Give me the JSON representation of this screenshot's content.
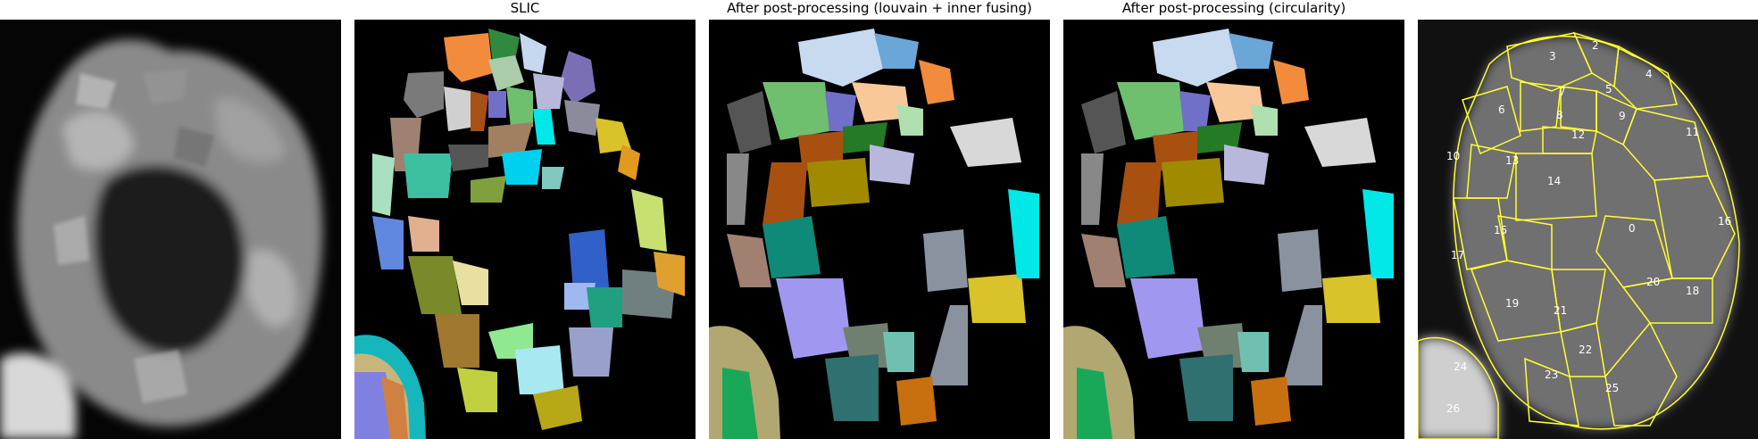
{
  "titles": {
    "panel1": "",
    "panel2": "SLIC",
    "panel3": "After post-processing (louvain + inner fusing)",
    "panel4": "After post-processing (circularity)",
    "panel5": ""
  },
  "region_labels": [
    "2",
    "3",
    "4",
    "5",
    "6",
    "7",
    "8",
    "9",
    "10",
    "11",
    "12",
    "13",
    "14",
    "15",
    "16",
    "17",
    "18",
    "19",
    "20",
    "21",
    "22",
    "23",
    "24",
    "25",
    "26",
    "0"
  ],
  "colors": {
    "background": "#000000",
    "contour": "#ffff33",
    "label_text": "#ffffff"
  }
}
